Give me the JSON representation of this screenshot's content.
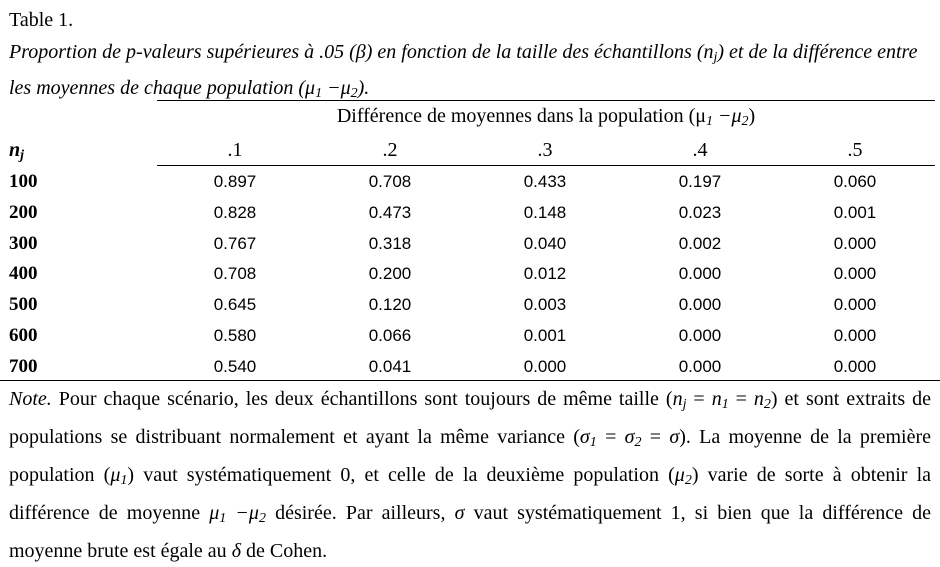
{
  "table_label": "Table 1.",
  "caption": {
    "part1": "Proportion de p-valeurs supérieures à .05 (β) en fonction de la taille des échantillons (n",
    "sub_j": "j",
    "part2": ") et de la différence entre les moyennes de chaque population (μ",
    "sub_1": "1",
    "part3": " −μ",
    "sub_2": "2",
    "part4": ")."
  },
  "spanner": {
    "text": "Différence de moyennes dans la population (μ",
    "sub_1": "1",
    "mid": " −μ",
    "sub_2": "2",
    "end": ")"
  },
  "row_header": {
    "text": "n",
    "sub": "j"
  },
  "columns": [
    ".1",
    ".2",
    ".3",
    ".4",
    ".5"
  ],
  "rows": [
    {
      "n": "100",
      "values": [
        "0.897",
        "0.708",
        "0.433",
        "0.197",
        "0.060"
      ]
    },
    {
      "n": "200",
      "values": [
        "0.828",
        "0.473",
        "0.148",
        "0.023",
        "0.001"
      ]
    },
    {
      "n": "300",
      "values": [
        "0.767",
        "0.318",
        "0.040",
        "0.002",
        "0.000"
      ]
    },
    {
      "n": "400",
      "values": [
        "0.708",
        "0.200",
        "0.012",
        "0.000",
        "0.000"
      ]
    },
    {
      "n": "500",
      "values": [
        "0.645",
        "0.120",
        "0.003",
        "0.000",
        "0.000"
      ]
    },
    {
      "n": "600",
      "values": [
        "0.580",
        "0.066",
        "0.001",
        "0.000",
        "0.000"
      ]
    },
    {
      "n": "700",
      "values": [
        "0.540",
        "0.041",
        "0.000",
        "0.000",
        "0.000"
      ]
    }
  ],
  "note": {
    "lead": "Note.",
    "t1": " Pour chaque scénario, les deux échantillons sont toujours de même taille (",
    "m1": "n",
    "s1": "j",
    "t2": " = ",
    "m2": "n",
    "s2": "1",
    "t3": " = ",
    "m3": "n",
    "s3": "2",
    "t4": ") et sont extraits de populations se distribuant normalement et ayant la même variance (",
    "m4": "σ",
    "s4": "1",
    "t5": " = ",
    "m5": "σ",
    "s5": "2",
    "t6": " = ",
    "m6": "σ",
    "t7": "). La moyenne de la première population (",
    "m7": "μ",
    "s7": "1",
    "t8": ") vaut systématiquement 0, et celle de la deuxième population (",
    "m8": "μ",
    "s8": "2",
    "t9": ") varie de sorte à obtenir la différence de moyenne ",
    "m9": "μ",
    "s9": "1",
    "t10": " −",
    "m10": "μ",
    "s10": "2",
    "t11": " désirée. Par ailleurs, ",
    "m11": "σ",
    "t12": " vaut systématiquement 1, si bien que la différence de moyenne brute est égale au ",
    "m12": "δ",
    "t13": " de Cohen."
  }
}
